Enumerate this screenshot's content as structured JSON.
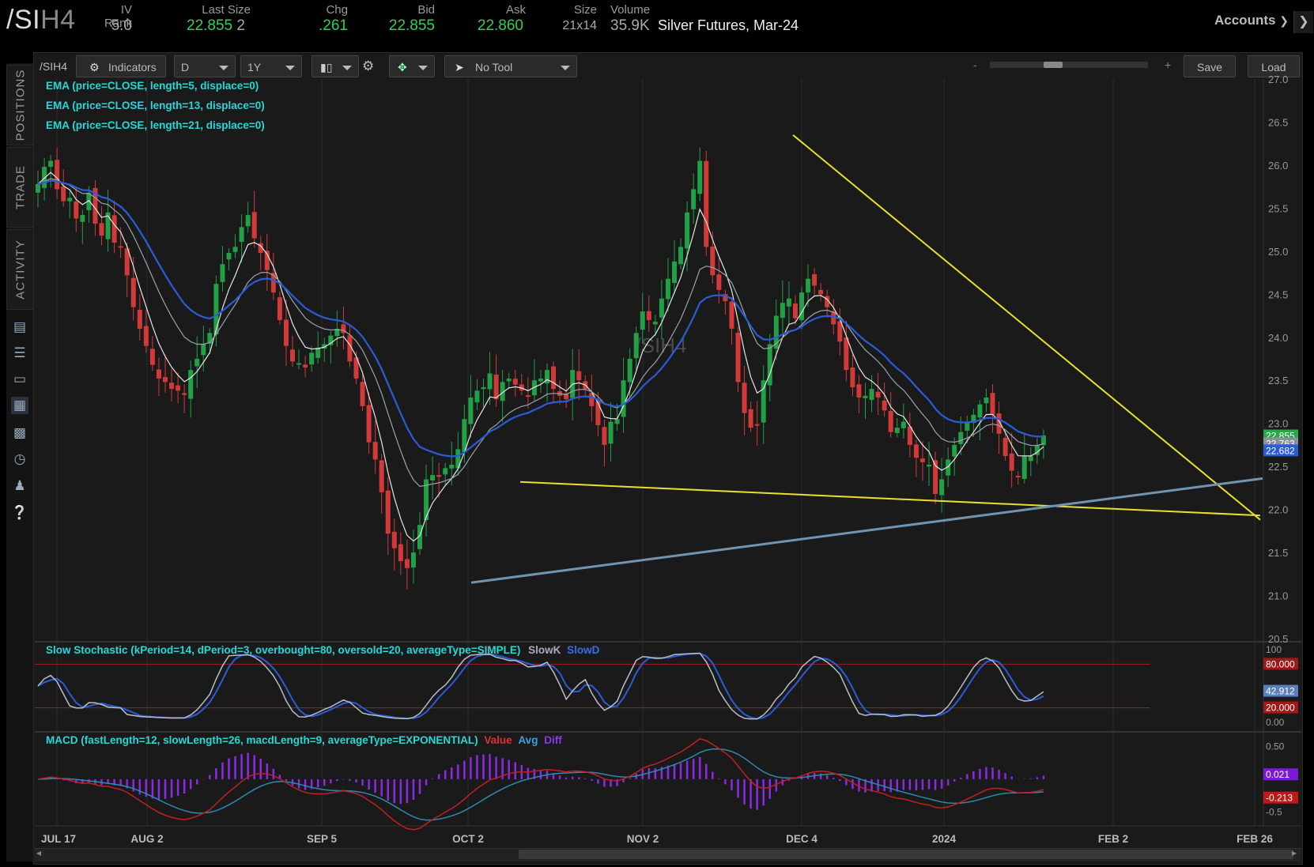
{
  "quote": {
    "symbol_main": "/SI",
    "symbol_suffix": "H4",
    "iv_rank_label": "IV Rank",
    "iv_rank": "5.0",
    "last_size_label": "Last Size",
    "last": "22.855",
    "size_last": "2",
    "chg_label": "Chg",
    "chg": ".261",
    "bid_label": "Bid",
    "bid": "22.855",
    "ask_label": "Ask",
    "ask": "22.860",
    "size_label": "Size",
    "size": "21x14",
    "volume_label": "Volume",
    "volume": "35.9K",
    "description": "Silver Futures, Mar-24"
  },
  "header": {
    "accounts": "Accounts"
  },
  "rail": {
    "tabs": [
      "POSITIONS",
      "TRADE",
      "ACTIVITY"
    ],
    "icons": [
      "news-icon",
      "list-icon",
      "tv-icon",
      "chart-icon",
      "grid-icon",
      "clock-icon",
      "people-icon",
      "help-icon"
    ]
  },
  "toolbar": {
    "symbol": "/SIH4",
    "indicators": "Indicators",
    "aggregation": "D",
    "timeframe": "1Y",
    "tool": "No Tool",
    "zoom_minus": "-",
    "zoom_plus": "+",
    "save": "Save",
    "load": "Load"
  },
  "studies": {
    "ema5": "EMA (price=CLOSE, length=5, displace=0)",
    "ema13": "EMA (price=CLOSE, length=13, displace=0)",
    "ema21": "EMA (price=CLOSE, length=21, displace=0)",
    "stoch": "Slow Stochastic (kPeriod=14, dPeriod=3, overbought=80, oversold=20, averageType=SIMPLE)",
    "stoch_k": "SlowK",
    "stoch_d": "SlowD",
    "macd": "MACD (fastLength=12, slowLength=26, macdLength=9, averageType=EXPONENTIAL)",
    "macd_value": "Value",
    "macd_avg": "Avg",
    "macd_diff": "Diff",
    "watermark": "/SIH4"
  },
  "colors": {
    "up": "#22a046",
    "down": "#d23a3a",
    "ema5": "#e6e6e6",
    "ema13": "#9aa3ad",
    "ema21": "#2a5cd6",
    "trend_yellow": "#e8e02a",
    "trend_blue": "#6f95b0",
    "study_text": "#28d7d7"
  },
  "chart_data": [
    {
      "type": "candlestick",
      "title": "/SIH4",
      "y_axis_labels": [
        "27.0",
        "26.5",
        "26.0",
        "25.5",
        "25.0",
        "24.5",
        "24.0",
        "23.5",
        "23.0",
        "22.5",
        "22.0",
        "21.5",
        "21.0",
        "20.5"
      ],
      "ylim": [
        20.5,
        27.0
      ],
      "x_axis_labels": [
        "JUL 17",
        "AUG 2",
        "SEP 5",
        "OCT 2",
        "NOV 2",
        "DEC 4",
        "2024",
        "FEB 2",
        "FEB 26"
      ],
      "price_tags": [
        "22.855",
        "22.763",
        "22.682"
      ],
      "closes": [
        25.78,
        25.98,
        26.05,
        25.72,
        25.58,
        25.62,
        25.38,
        25.42,
        25.68,
        25.32,
        25.18,
        25.45,
        25.1,
        25.05,
        24.72,
        24.35,
        24.1,
        23.9,
        23.68,
        23.52,
        23.48,
        23.4,
        23.38,
        23.33,
        23.62,
        23.75,
        23.92,
        24.05,
        24.62,
        24.85,
        24.98,
        25.05,
        25.28,
        25.42,
        25.15,
        24.98,
        24.78,
        24.52,
        24.2,
        23.9,
        23.72,
        23.7,
        23.65,
        23.82,
        23.88,
        23.92,
        24.02,
        24.1,
        24.05,
        23.72,
        23.52,
        23.2,
        22.78,
        22.58,
        22.2,
        21.72,
        21.55,
        21.4,
        21.32,
        21.5,
        21.82,
        22.35,
        22.4,
        22.38,
        22.48,
        22.52,
        22.7,
        23.05,
        23.3,
        23.38,
        23.42,
        23.58,
        23.28,
        23.48,
        23.52,
        23.45,
        23.38,
        23.32,
        23.5,
        23.52,
        23.62,
        23.4,
        23.32,
        23.28,
        23.62,
        23.5,
        23.4,
        23.2,
        22.98,
        22.75,
        23.02,
        23.05,
        23.5,
        23.75,
        24.05,
        24.3,
        24.2,
        24.18,
        24.45,
        24.68,
        24.88,
        25.05,
        25.45,
        25.72,
        26.05,
        25.05,
        24.72,
        24.55,
        24.42,
        24.1,
        23.48,
        23.12,
        22.95,
        22.98,
        23.5,
        23.92,
        24.25,
        24.4,
        24.45,
        24.22,
        24.52,
        24.68,
        24.6,
        24.5,
        24.35,
        24.15,
        23.95,
        23.62,
        23.42,
        23.3,
        23.32,
        23.4,
        23.3,
        23.15,
        22.9,
        22.95,
        23.02,
        22.75,
        22.6,
        22.55,
        22.52,
        22.18,
        22.35,
        22.58,
        22.75,
        22.9,
        23.02,
        23.1,
        23.22,
        23.3,
        23.1,
        22.88,
        22.62,
        22.45,
        22.38,
        22.62,
        22.62,
        22.75,
        22.86
      ],
      "ema5_last": 22.763,
      "ema13_last": 22.682,
      "ema21_last": 22.855,
      "trendlines": [
        {
          "color": "yellow",
          "from": [
            "Dec 4",
            26.35
          ],
          "to": [
            "Feb 26",
            21.9
          ]
        },
        {
          "color": "yellow",
          "from": [
            "Oct 10",
            22.32
          ],
          "to": [
            "Feb 26",
            21.95
          ]
        },
        {
          "color": "blue",
          "from": [
            "Oct 3",
            21.15
          ],
          "to": [
            "Feb 26",
            22.35
          ]
        }
      ]
    },
    {
      "type": "line",
      "title": "Slow Stochastic (kPeriod=14, dPeriod=3, overbought=80, oversold=20, averageType=SIMPLE)",
      "y_axis_labels": [
        "100",
        "80.000",
        "42.912",
        "20.000",
        "0.00"
      ],
      "ylim": [
        0,
        100
      ],
      "overbought": 80,
      "oversold": 20,
      "series": [
        {
          "name": "SlowK"
        },
        {
          "name": "SlowD"
        }
      ],
      "last_value": 42.912
    },
    {
      "type": "line",
      "title": "MACD (fastLength=12, slowLength=26, macdLength=9, averageType=EXPONENTIAL)",
      "y_axis_labels": [
        "0.50",
        "0.021",
        "-0.213",
        "-0.5"
      ],
      "ylim": [
        -0.65,
        0.6
      ],
      "series": [
        {
          "name": "Value"
        },
        {
          "name": "Avg"
        },
        {
          "name": "Diff"
        }
      ],
      "last_diff": 0.021,
      "last_value": -0.213
    }
  ]
}
